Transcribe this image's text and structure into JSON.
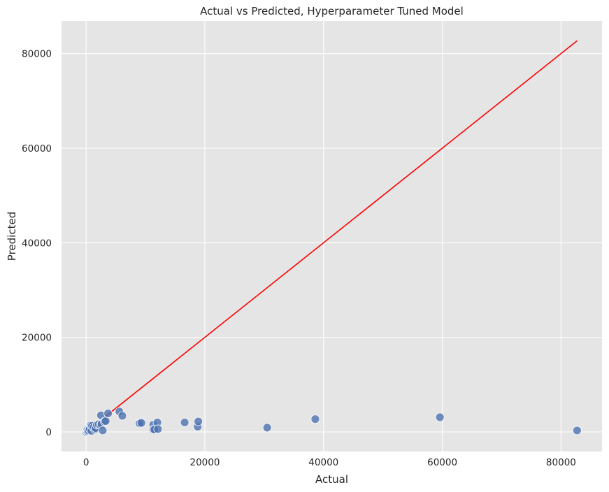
{
  "chart_data": {
    "type": "scatter",
    "title": "Actual vs Predicted, Hyperparameter Tuned Model",
    "xlabel": "Actual",
    "ylabel": "Predicted",
    "xlim": [
      -4140,
      86900
    ],
    "ylim": [
      -4140,
      86900
    ],
    "xticks": [
      0,
      20000,
      40000,
      60000,
      80000
    ],
    "yticks": [
      0,
      20000,
      40000,
      60000,
      80000
    ],
    "xtick_labels": [
      "0",
      "20000",
      "40000",
      "60000",
      "80000"
    ],
    "ytick_labels": [
      "0",
      "20000",
      "40000",
      "60000",
      "80000"
    ],
    "grid": true,
    "background_color": "#e5e5e5",
    "grid_color": "#ffffff",
    "point_color": "#4c72b0",
    "line_color": "#ff0000",
    "reference_line": {
      "x": [
        0,
        82700
      ],
      "y": [
        0,
        82700
      ]
    },
    "points": [
      {
        "x": 0,
        "y": 0
      },
      {
        "x": 100,
        "y": 200
      },
      {
        "x": 200,
        "y": 400
      },
      {
        "x": 300,
        "y": 100
      },
      {
        "x": 400,
        "y": 300
      },
      {
        "x": 600,
        "y": 600
      },
      {
        "x": 800,
        "y": 1400
      },
      {
        "x": 900,
        "y": 200
      },
      {
        "x": 1000,
        "y": 1300
      },
      {
        "x": 1200,
        "y": 900
      },
      {
        "x": 1500,
        "y": 500
      },
      {
        "x": 1600,
        "y": 800
      },
      {
        "x": 1800,
        "y": 1500
      },
      {
        "x": 2100,
        "y": 1600
      },
      {
        "x": 2400,
        "y": 1400
      },
      {
        "x": 2500,
        "y": 3500
      },
      {
        "x": 2600,
        "y": 1600
      },
      {
        "x": 2800,
        "y": 300
      },
      {
        "x": 3100,
        "y": 2200
      },
      {
        "x": 3300,
        "y": 2300
      },
      {
        "x": 3700,
        "y": 3900
      },
      {
        "x": 5600,
        "y": 4300
      },
      {
        "x": 6100,
        "y": 3400
      },
      {
        "x": 9000,
        "y": 1800
      },
      {
        "x": 9300,
        "y": 1900
      },
      {
        "x": 11300,
        "y": 1500
      },
      {
        "x": 11300,
        "y": 500
      },
      {
        "x": 11500,
        "y": 500
      },
      {
        "x": 12000,
        "y": 2000
      },
      {
        "x": 12100,
        "y": 600
      },
      {
        "x": 16600,
        "y": 2000
      },
      {
        "x": 18800,
        "y": 1100
      },
      {
        "x": 18900,
        "y": 2200
      },
      {
        "x": 30500,
        "y": 900
      },
      {
        "x": 38600,
        "y": 2700
      },
      {
        "x": 59600,
        "y": 3100
      },
      {
        "x": 82700,
        "y": 300
      }
    ]
  }
}
